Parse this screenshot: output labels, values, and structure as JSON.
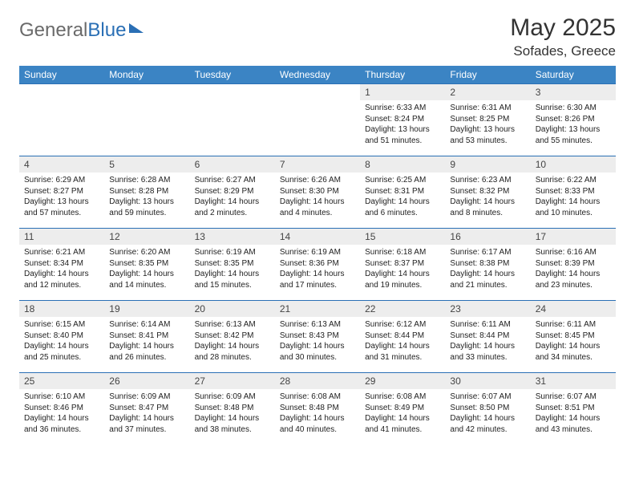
{
  "logo": {
    "text1": "General",
    "text2": "Blue"
  },
  "title": "May 2025",
  "subtitle": "Sofades, Greece",
  "colors": {
    "header_bg": "#3b84c4",
    "border": "#2a6fb5",
    "daynum_bg": "#ededed",
    "text": "#222222",
    "title": "#333333"
  },
  "weekdays": [
    "Sunday",
    "Monday",
    "Tuesday",
    "Wednesday",
    "Thursday",
    "Friday",
    "Saturday"
  ],
  "weeks": [
    [
      {
        "n": "",
        "sr": "",
        "ss": "",
        "dl": ""
      },
      {
        "n": "",
        "sr": "",
        "ss": "",
        "dl": ""
      },
      {
        "n": "",
        "sr": "",
        "ss": "",
        "dl": ""
      },
      {
        "n": "",
        "sr": "",
        "ss": "",
        "dl": ""
      },
      {
        "n": "1",
        "sr": "Sunrise: 6:33 AM",
        "ss": "Sunset: 8:24 PM",
        "dl": "Daylight: 13 hours and 51 minutes."
      },
      {
        "n": "2",
        "sr": "Sunrise: 6:31 AM",
        "ss": "Sunset: 8:25 PM",
        "dl": "Daylight: 13 hours and 53 minutes."
      },
      {
        "n": "3",
        "sr": "Sunrise: 6:30 AM",
        "ss": "Sunset: 8:26 PM",
        "dl": "Daylight: 13 hours and 55 minutes."
      }
    ],
    [
      {
        "n": "4",
        "sr": "Sunrise: 6:29 AM",
        "ss": "Sunset: 8:27 PM",
        "dl": "Daylight: 13 hours and 57 minutes."
      },
      {
        "n": "5",
        "sr": "Sunrise: 6:28 AM",
        "ss": "Sunset: 8:28 PM",
        "dl": "Daylight: 13 hours and 59 minutes."
      },
      {
        "n": "6",
        "sr": "Sunrise: 6:27 AM",
        "ss": "Sunset: 8:29 PM",
        "dl": "Daylight: 14 hours and 2 minutes."
      },
      {
        "n": "7",
        "sr": "Sunrise: 6:26 AM",
        "ss": "Sunset: 8:30 PM",
        "dl": "Daylight: 14 hours and 4 minutes."
      },
      {
        "n": "8",
        "sr": "Sunrise: 6:25 AM",
        "ss": "Sunset: 8:31 PM",
        "dl": "Daylight: 14 hours and 6 minutes."
      },
      {
        "n": "9",
        "sr": "Sunrise: 6:23 AM",
        "ss": "Sunset: 8:32 PM",
        "dl": "Daylight: 14 hours and 8 minutes."
      },
      {
        "n": "10",
        "sr": "Sunrise: 6:22 AM",
        "ss": "Sunset: 8:33 PM",
        "dl": "Daylight: 14 hours and 10 minutes."
      }
    ],
    [
      {
        "n": "11",
        "sr": "Sunrise: 6:21 AM",
        "ss": "Sunset: 8:34 PM",
        "dl": "Daylight: 14 hours and 12 minutes."
      },
      {
        "n": "12",
        "sr": "Sunrise: 6:20 AM",
        "ss": "Sunset: 8:35 PM",
        "dl": "Daylight: 14 hours and 14 minutes."
      },
      {
        "n": "13",
        "sr": "Sunrise: 6:19 AM",
        "ss": "Sunset: 8:35 PM",
        "dl": "Daylight: 14 hours and 15 minutes."
      },
      {
        "n": "14",
        "sr": "Sunrise: 6:19 AM",
        "ss": "Sunset: 8:36 PM",
        "dl": "Daylight: 14 hours and 17 minutes."
      },
      {
        "n": "15",
        "sr": "Sunrise: 6:18 AM",
        "ss": "Sunset: 8:37 PM",
        "dl": "Daylight: 14 hours and 19 minutes."
      },
      {
        "n": "16",
        "sr": "Sunrise: 6:17 AM",
        "ss": "Sunset: 8:38 PM",
        "dl": "Daylight: 14 hours and 21 minutes."
      },
      {
        "n": "17",
        "sr": "Sunrise: 6:16 AM",
        "ss": "Sunset: 8:39 PM",
        "dl": "Daylight: 14 hours and 23 minutes."
      }
    ],
    [
      {
        "n": "18",
        "sr": "Sunrise: 6:15 AM",
        "ss": "Sunset: 8:40 PM",
        "dl": "Daylight: 14 hours and 25 minutes."
      },
      {
        "n": "19",
        "sr": "Sunrise: 6:14 AM",
        "ss": "Sunset: 8:41 PM",
        "dl": "Daylight: 14 hours and 26 minutes."
      },
      {
        "n": "20",
        "sr": "Sunrise: 6:13 AM",
        "ss": "Sunset: 8:42 PM",
        "dl": "Daylight: 14 hours and 28 minutes."
      },
      {
        "n": "21",
        "sr": "Sunrise: 6:13 AM",
        "ss": "Sunset: 8:43 PM",
        "dl": "Daylight: 14 hours and 30 minutes."
      },
      {
        "n": "22",
        "sr": "Sunrise: 6:12 AM",
        "ss": "Sunset: 8:44 PM",
        "dl": "Daylight: 14 hours and 31 minutes."
      },
      {
        "n": "23",
        "sr": "Sunrise: 6:11 AM",
        "ss": "Sunset: 8:44 PM",
        "dl": "Daylight: 14 hours and 33 minutes."
      },
      {
        "n": "24",
        "sr": "Sunrise: 6:11 AM",
        "ss": "Sunset: 8:45 PM",
        "dl": "Daylight: 14 hours and 34 minutes."
      }
    ],
    [
      {
        "n": "25",
        "sr": "Sunrise: 6:10 AM",
        "ss": "Sunset: 8:46 PM",
        "dl": "Daylight: 14 hours and 36 minutes."
      },
      {
        "n": "26",
        "sr": "Sunrise: 6:09 AM",
        "ss": "Sunset: 8:47 PM",
        "dl": "Daylight: 14 hours and 37 minutes."
      },
      {
        "n": "27",
        "sr": "Sunrise: 6:09 AM",
        "ss": "Sunset: 8:48 PM",
        "dl": "Daylight: 14 hours and 38 minutes."
      },
      {
        "n": "28",
        "sr": "Sunrise: 6:08 AM",
        "ss": "Sunset: 8:48 PM",
        "dl": "Daylight: 14 hours and 40 minutes."
      },
      {
        "n": "29",
        "sr": "Sunrise: 6:08 AM",
        "ss": "Sunset: 8:49 PM",
        "dl": "Daylight: 14 hours and 41 minutes."
      },
      {
        "n": "30",
        "sr": "Sunrise: 6:07 AM",
        "ss": "Sunset: 8:50 PM",
        "dl": "Daylight: 14 hours and 42 minutes."
      },
      {
        "n": "31",
        "sr": "Sunrise: 6:07 AM",
        "ss": "Sunset: 8:51 PM",
        "dl": "Daylight: 14 hours and 43 minutes."
      }
    ]
  ]
}
